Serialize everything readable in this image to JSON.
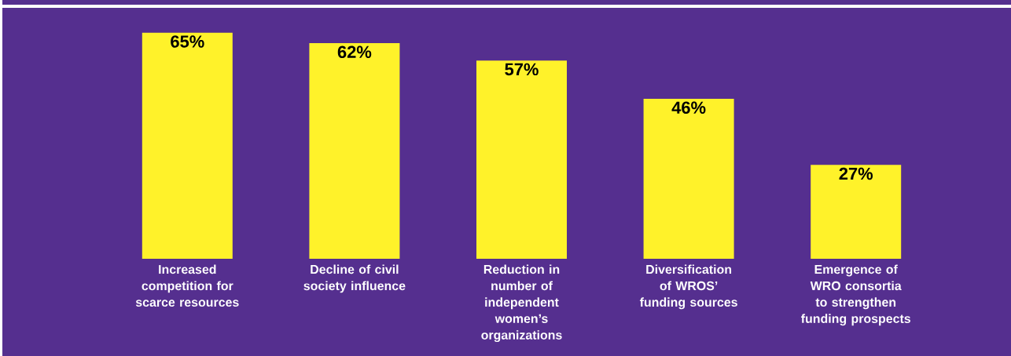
{
  "chart_data": {
    "type": "bar",
    "categories": [
      "Increased competition for scarce resources",
      "Decline of civil society influence",
      "Reduction in number of independent women’s organizations",
      "Diversification of WROS’ funding sources",
      "Emergence of WRO consortia to strengthen funding prospects"
    ],
    "values": [
      65,
      62,
      57,
      46,
      27
    ],
    "value_labels": [
      "65%",
      "62%",
      "57%",
      "46%",
      "27%"
    ],
    "color": "#fff22a"
  }
}
